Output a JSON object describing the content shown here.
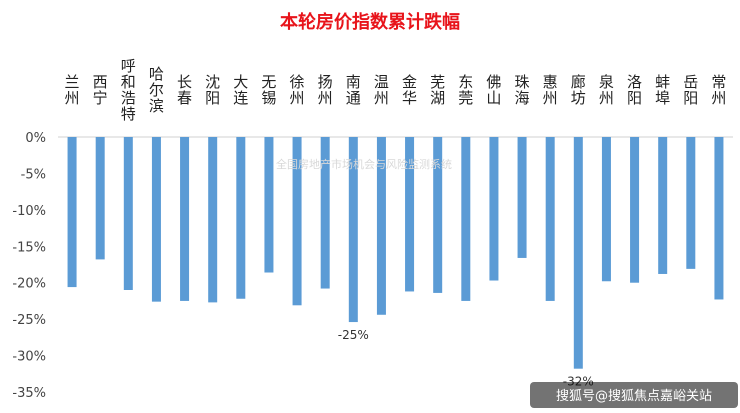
{
  "chart_data": {
    "type": "bar",
    "title": "本轮房价指数累计跌幅",
    "categories": [
      "兰州",
      "西宁",
      "呼和浩特",
      "哈尔滨",
      "长春",
      "沈阳",
      "大连",
      "无锡",
      "徐州",
      "扬州",
      "南通",
      "温州",
      "金华",
      "芜湖",
      "东莞",
      "佛山",
      "珠海",
      "惠州",
      "廊坊",
      "泉州",
      "洛阳",
      "蚌埠",
      "岳阳",
      "常州"
    ],
    "series": [
      {
        "values": [
          -20.6,
          -16.8,
          -21.0,
          -22.6,
          -22.5,
          -22.7,
          -22.2,
          -18.6,
          -23.1,
          -20.8,
          -25.4,
          -24.4,
          -21.2,
          -21.4,
          -22.5,
          -19.7,
          -16.6,
          -22.5,
          -31.8,
          -19.8,
          -20.0,
          -18.8,
          -18.1,
          -22.3
        ]
      }
    ],
    "data_labels": [
      {
        "category": "南通",
        "text": "-25%"
      },
      {
        "category": "廊坊",
        "text": "-32%"
      }
    ],
    "ylim": [
      -35,
      0
    ],
    "yticks": [
      0,
      -5,
      -10,
      -15,
      -20,
      -25,
      -30,
      -35
    ],
    "ytick_labels": [
      "0%",
      "-5%",
      "-10%",
      "-15%",
      "-20%",
      "-25%",
      "-30%",
      "-35%"
    ],
    "xaxis_position": "top",
    "grid": false,
    "colors": {
      "bar": "#5b9bd5",
      "title": "#e8141b"
    }
  },
  "watermark": "全国房地产市场机会与风险监测系统",
  "footer": "搜狐号@搜狐焦点嘉峪关站"
}
